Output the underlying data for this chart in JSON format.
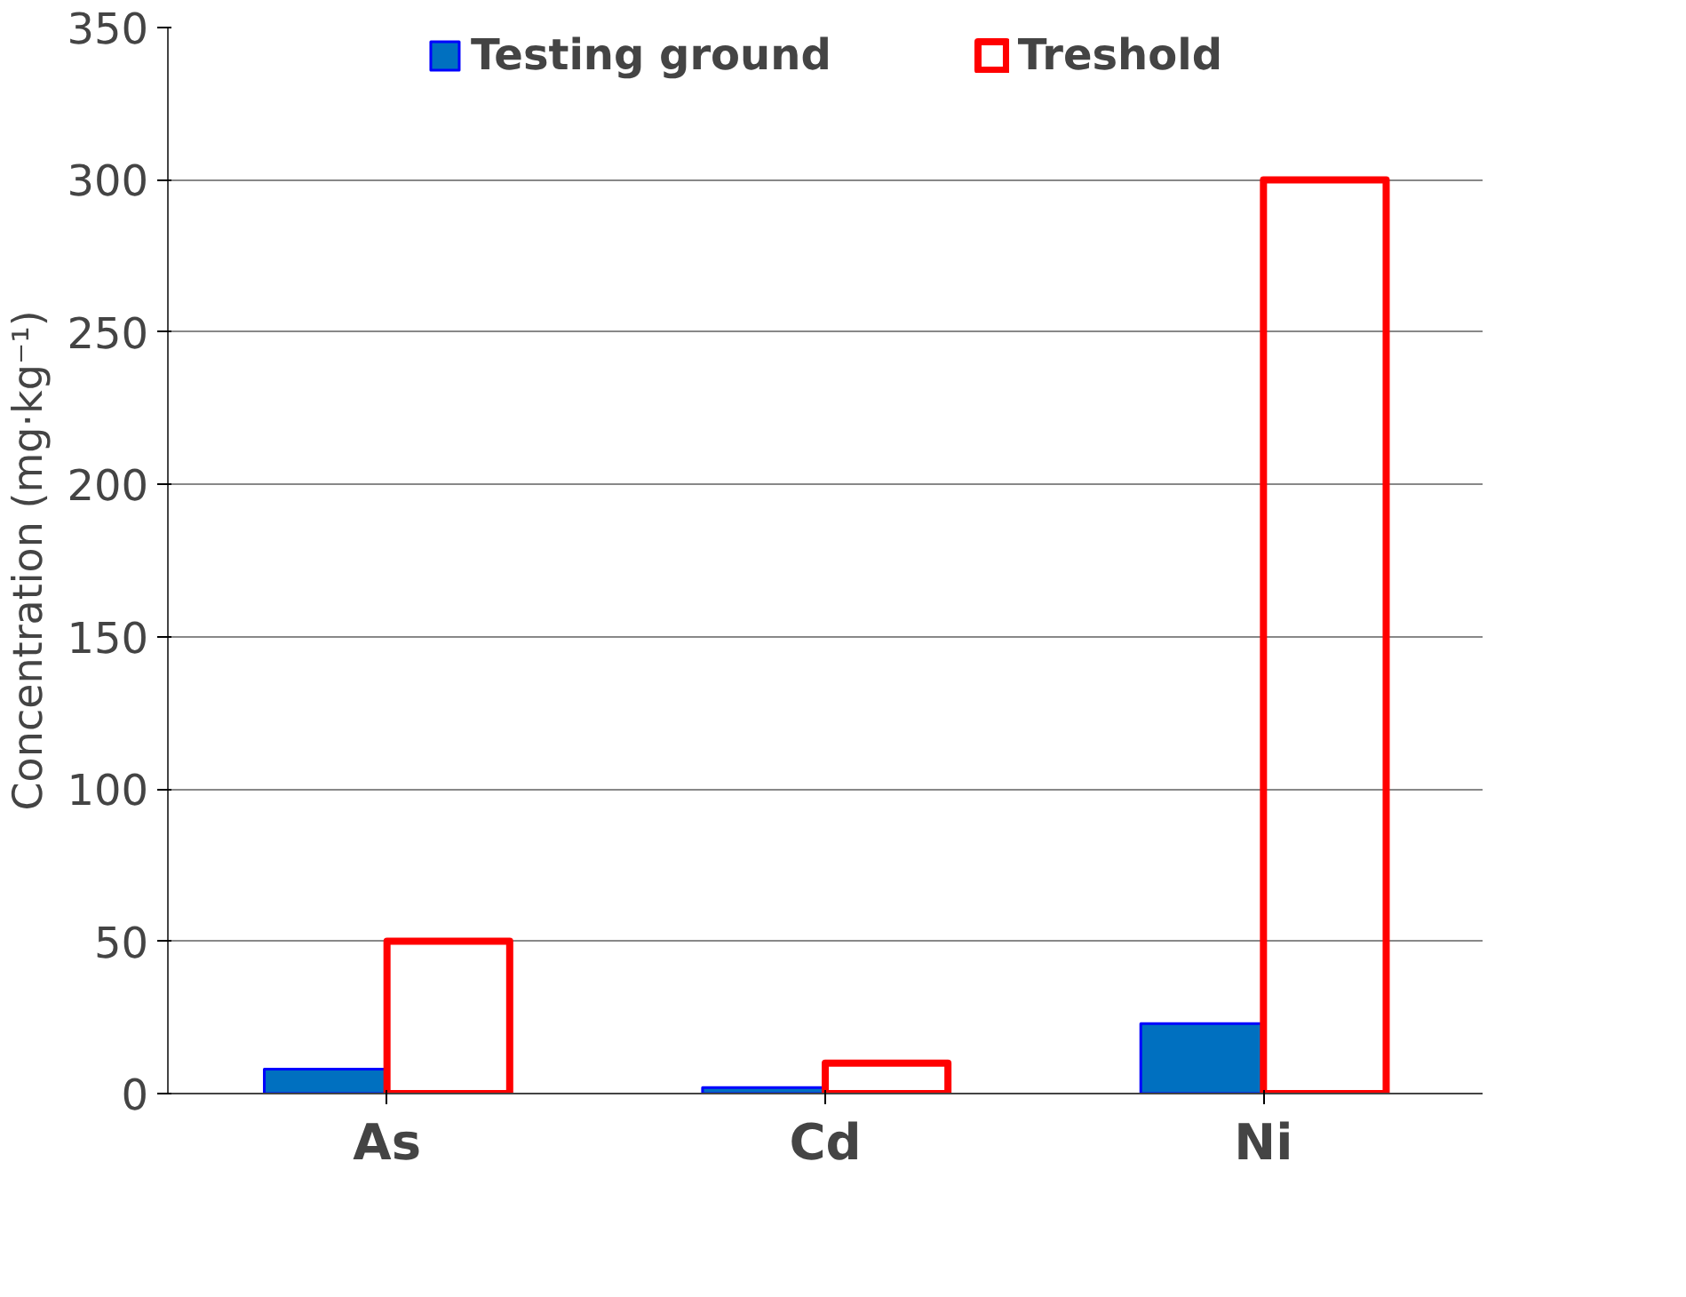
{
  "chart_data": {
    "type": "bar",
    "ylabel": "Concentration (mg·kg⁻¹)",
    "categories": [
      "As",
      "Cd",
      "Ni"
    ],
    "series": [
      {
        "name": "Testing ground",
        "color": "#0070c0",
        "values": [
          8,
          2,
          23
        ]
      },
      {
        "name": "Treshold",
        "color": "#ff0000",
        "values": [
          50,
          10,
          300
        ]
      }
    ],
    "ylim": [
      0,
      350
    ],
    "yticks": [
      0,
      50,
      100,
      150,
      200,
      250,
      300,
      350
    ],
    "grid": "y",
    "legend": "top"
  }
}
